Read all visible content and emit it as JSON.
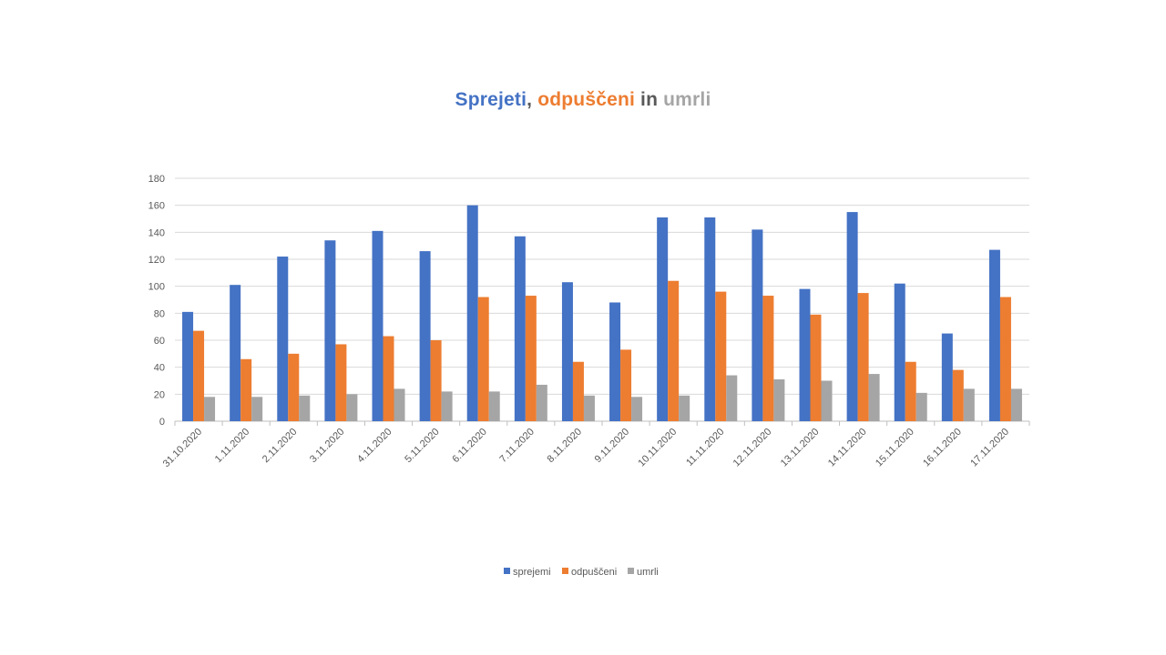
{
  "chart_data": {
    "type": "bar",
    "title_parts": [
      {
        "text": "Sprejeti",
        "color": "#4472c4"
      },
      {
        "text": ", ",
        "color": "#595959"
      },
      {
        "text": "odpuščeni",
        "color": "#ed7d31"
      },
      {
        "text": " in ",
        "color": "#595959"
      },
      {
        "text": "umrli",
        "color": "#a5a5a5"
      }
    ],
    "categories": [
      "31.10.2020",
      "1.11.2020",
      "2.11.2020",
      "3.11.2020",
      "4.11.2020",
      "5.11.2020",
      "6.11.2020",
      "7.11.2020",
      "8.11.2020",
      "9.11.2020",
      "10.11.2020",
      "11.11.2020",
      "12.11.2020",
      "13.11.2020",
      "14.11.2020",
      "15.11.2020",
      "16.11.2020",
      "17.11.2020"
    ],
    "series": [
      {
        "name": "sprejemi",
        "color": "#4472c4",
        "values": [
          81,
          101,
          122,
          134,
          141,
          126,
          160,
          137,
          103,
          88,
          151,
          151,
          142,
          98,
          155,
          102,
          65,
          127
        ]
      },
      {
        "name": "odpuščeni",
        "color": "#ed7d31",
        "values": [
          67,
          46,
          50,
          57,
          63,
          60,
          92,
          93,
          44,
          53,
          104,
          96,
          93,
          79,
          95,
          44,
          38,
          92
        ]
      },
      {
        "name": "umrli",
        "color": "#a5a5a5",
        "values": [
          18,
          18,
          19,
          20,
          24,
          22,
          22,
          27,
          19,
          18,
          19,
          34,
          31,
          30,
          35,
          21,
          24,
          24
        ]
      }
    ],
    "ylim": [
      0,
      180
    ],
    "yticks": [
      0,
      20,
      40,
      60,
      80,
      100,
      120,
      140,
      160,
      180
    ],
    "grid": true,
    "legend_position": "bottom"
  }
}
